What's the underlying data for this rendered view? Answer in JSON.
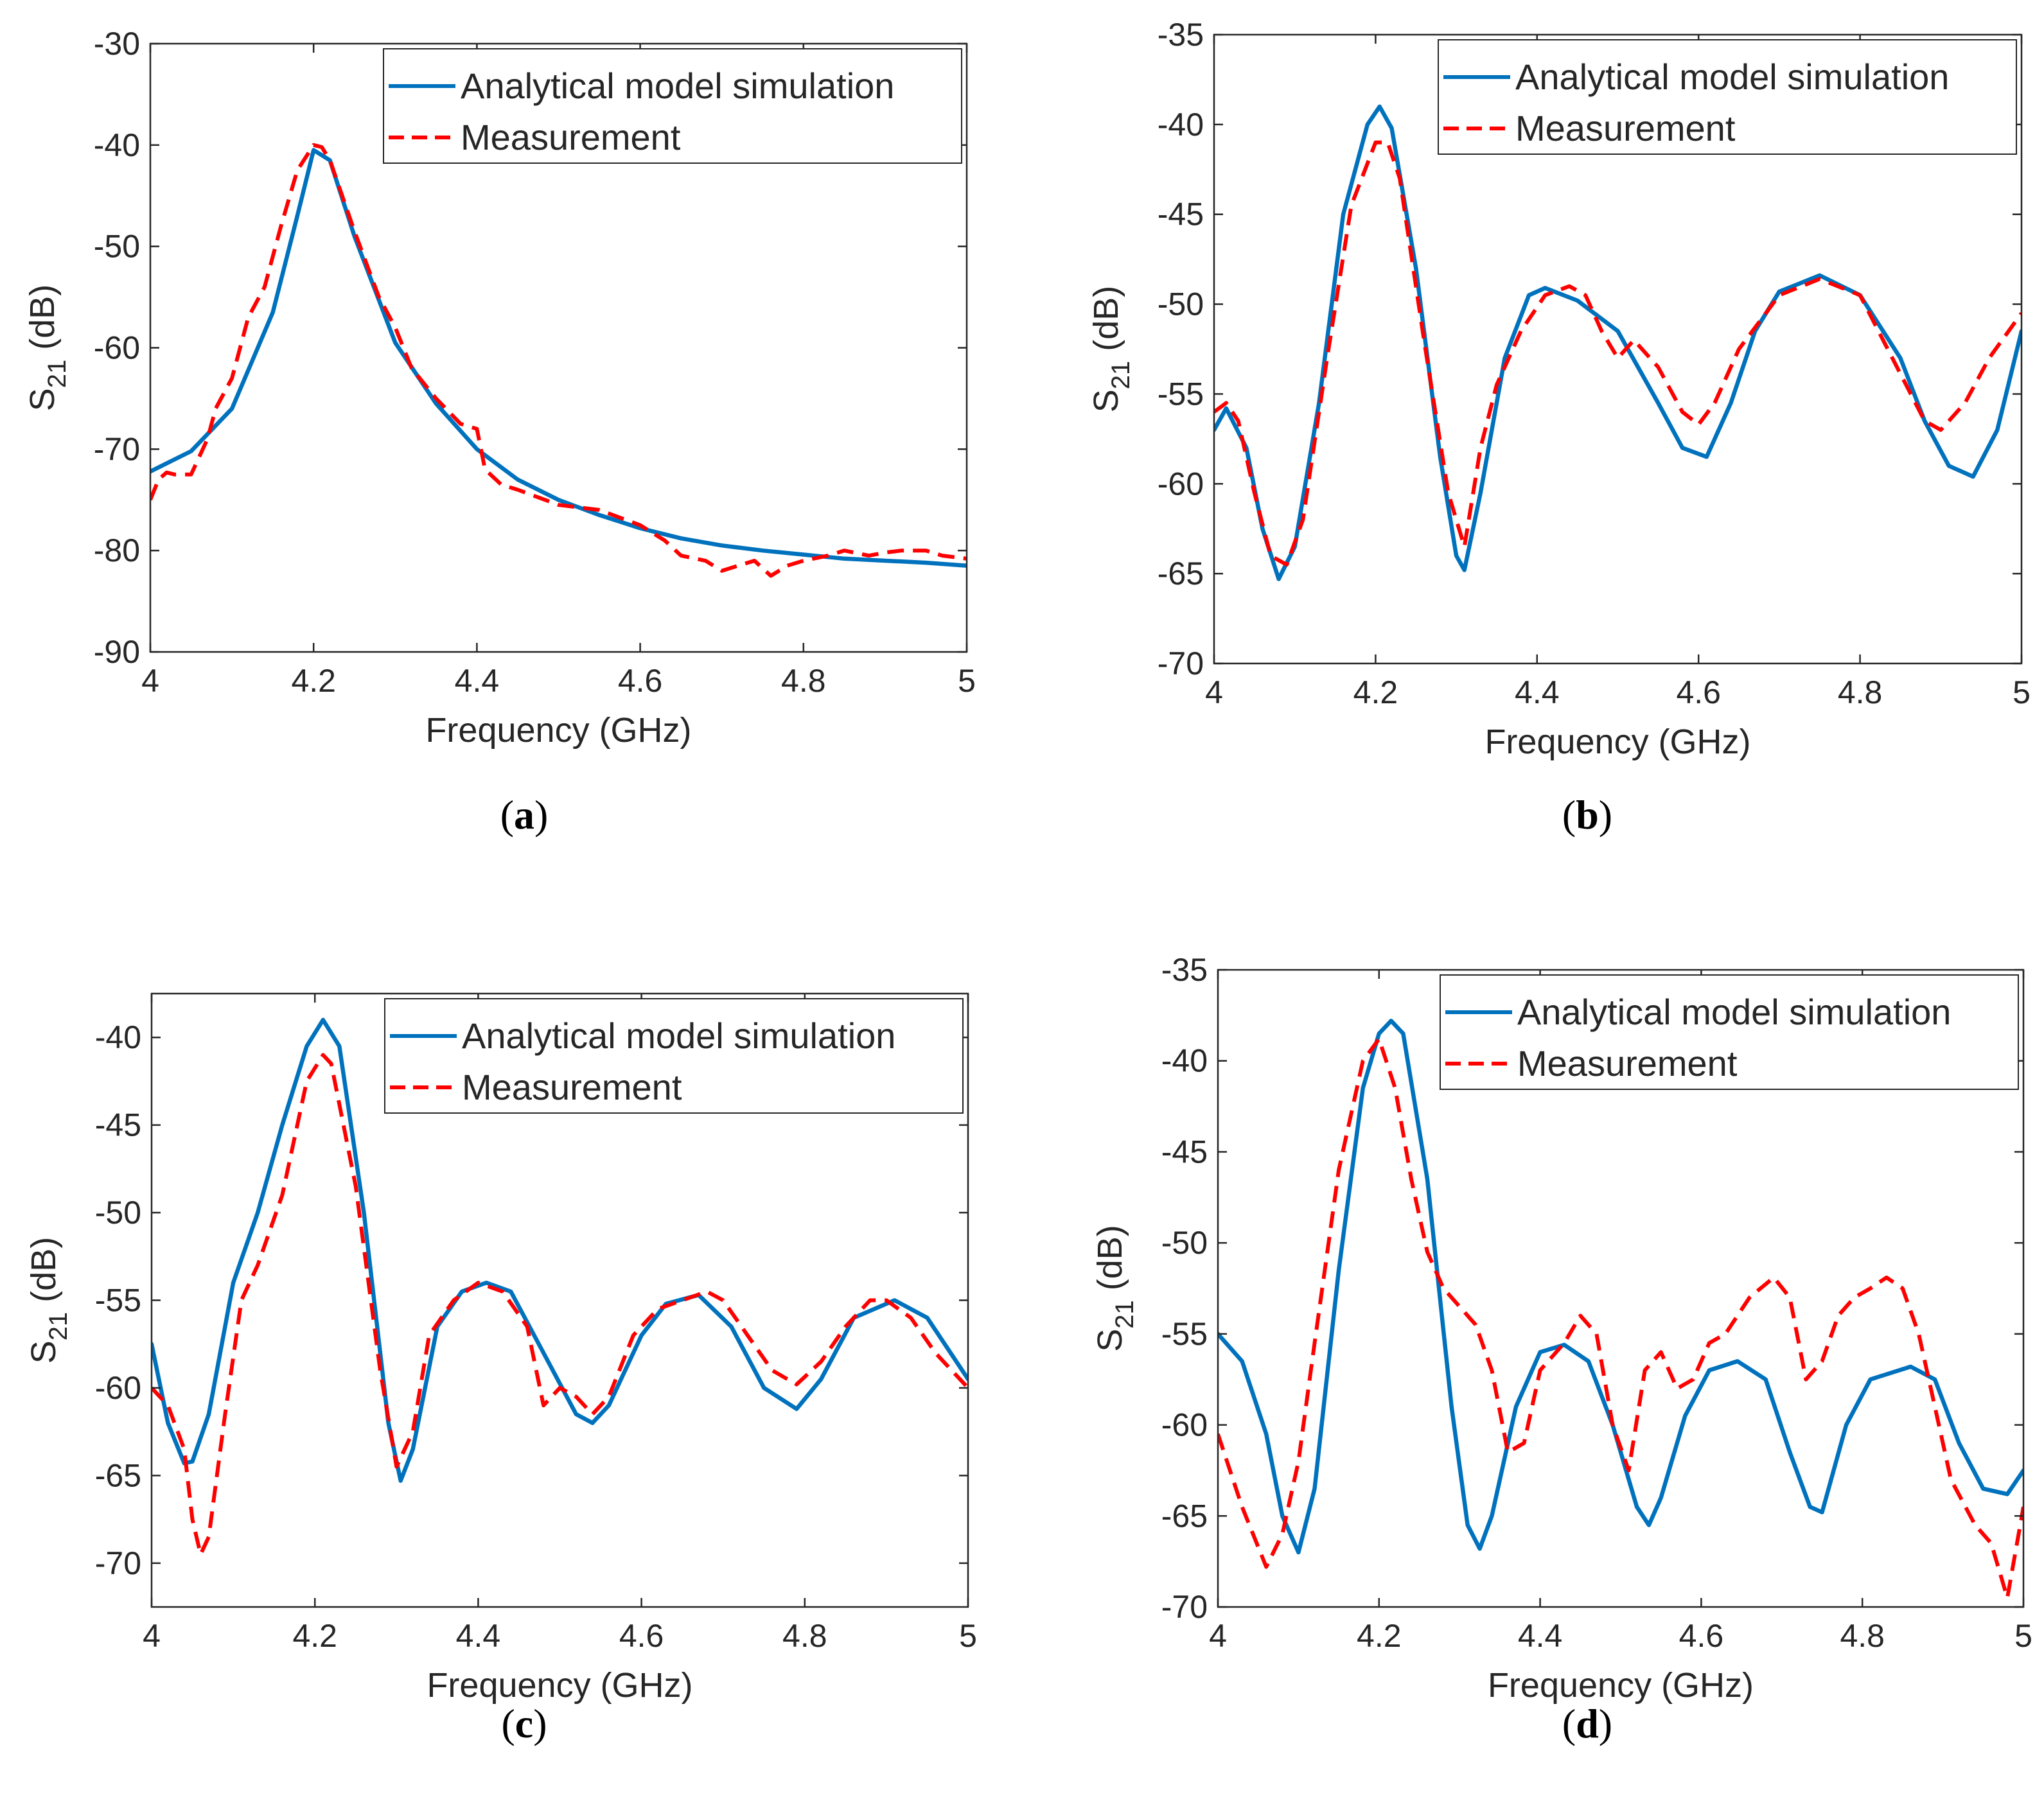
{
  "colors": {
    "simulation": "#0072BD",
    "measurement": "#FF0000",
    "axis": "#262626",
    "background": "#FFFFFF"
  },
  "chart_data": [
    {
      "type": "line",
      "panel_label": "(a)",
      "xlabel": "Frequency (GHz)",
      "ylabel": "S21 (dB)",
      "ylabel_main": "S",
      "ylabel_sub": "21",
      "ylabel_unit": " (dB)",
      "xlim": [
        4,
        5
      ],
      "ylim": [
        -90,
        -30
      ],
      "xticks": [
        4,
        4.2,
        4.4,
        4.6,
        4.8,
        5
      ],
      "yticks": [
        -90,
        -80,
        -70,
        -60,
        -50,
        -40,
        -30
      ],
      "legend": [
        "Analytical model simulation",
        "Measurement"
      ],
      "legend_position": "top-right",
      "series": [
        {
          "name": "Analytical model simulation",
          "style": "solid",
          "x": [
            4.0,
            4.05,
            4.1,
            4.15,
            4.18,
            4.2,
            4.22,
            4.25,
            4.3,
            4.35,
            4.4,
            4.45,
            4.5,
            4.55,
            4.6,
            4.65,
            4.7,
            4.75,
            4.8,
            4.85,
            4.9,
            4.95,
            5.0
          ],
          "y": [
            -72.2,
            -70.2,
            -66.0,
            -56.5,
            -47.0,
            -40.5,
            -41.5,
            -49.0,
            -59.5,
            -65.5,
            -70.0,
            -73.0,
            -75.0,
            -76.5,
            -77.8,
            -78.8,
            -79.5,
            -80.0,
            -80.4,
            -80.8,
            -81.0,
            -81.2,
            -81.5
          ]
        },
        {
          "name": "Measurement",
          "style": "dashed",
          "x": [
            4.0,
            4.01,
            4.02,
            4.03,
            4.05,
            4.07,
            4.08,
            4.1,
            4.12,
            4.14,
            4.16,
            4.18,
            4.2,
            4.21,
            4.22,
            4.25,
            4.28,
            4.3,
            4.32,
            4.35,
            4.38,
            4.4,
            4.41,
            4.43,
            4.45,
            4.5,
            4.55,
            4.6,
            4.63,
            4.65,
            4.68,
            4.7,
            4.72,
            4.74,
            4.76,
            4.78,
            4.8,
            4.83,
            4.85,
            4.88,
            4.9,
            4.92,
            4.95,
            4.97,
            5.0
          ],
          "y": [
            -75.0,
            -73.0,
            -72.3,
            -72.5,
            -72.5,
            -69.0,
            -66.0,
            -63.0,
            -57.0,
            -54.0,
            -48.0,
            -42.5,
            -40.0,
            -40.2,
            -41.5,
            -48.5,
            -55.0,
            -58.0,
            -62.0,
            -65.0,
            -67.5,
            -68.0,
            -72.0,
            -73.5,
            -74.0,
            -75.5,
            -76.0,
            -77.5,
            -79.0,
            -80.5,
            -81.0,
            -82.0,
            -81.5,
            -81.0,
            -82.5,
            -81.5,
            -81.0,
            -80.5,
            -80.0,
            -80.5,
            -80.2,
            -80.0,
            -80.0,
            -80.5,
            -80.8
          ]
        }
      ]
    },
    {
      "type": "line",
      "panel_label": "(b)",
      "xlabel": "Frequency (GHz)",
      "ylabel": "S21 (dB)",
      "ylabel_main": "S",
      "ylabel_sub": "21",
      "ylabel_unit": " (dB)",
      "xlim": [
        4,
        5
      ],
      "ylim": [
        -70,
        -35
      ],
      "xticks": [
        4,
        4.2,
        4.4,
        4.6,
        4.8,
        5
      ],
      "yticks": [
        -70,
        -65,
        -60,
        -55,
        -50,
        -45,
        -40,
        -35
      ],
      "legend": [
        "Analytical model simulation",
        "Measurement"
      ],
      "legend_position": "top-right",
      "series": [
        {
          "name": "Analytical model simulation",
          "style": "solid",
          "x": [
            4.0,
            4.015,
            4.04,
            4.06,
            4.08,
            4.1,
            4.13,
            4.16,
            4.19,
            4.205,
            4.22,
            4.25,
            4.28,
            4.3,
            4.31,
            4.33,
            4.36,
            4.39,
            4.41,
            4.45,
            4.5,
            4.55,
            4.58,
            4.61,
            4.64,
            4.67,
            4.7,
            4.75,
            4.8,
            4.85,
            4.88,
            4.91,
            4.94,
            4.97,
            5.0
          ],
          "y": [
            -57.0,
            -55.8,
            -58.0,
            -62.5,
            -65.3,
            -63.5,
            -55.5,
            -45.0,
            -40.0,
            -39.0,
            -40.2,
            -48.0,
            -58.5,
            -64.0,
            -64.8,
            -60.5,
            -53.0,
            -49.5,
            -49.1,
            -49.8,
            -51.5,
            -55.5,
            -58.0,
            -58.5,
            -55.5,
            -51.5,
            -49.3,
            -48.4,
            -49.5,
            -53.0,
            -56.5,
            -59.0,
            -59.6,
            -57.0,
            -51.5
          ]
        },
        {
          "name": "Measurement",
          "style": "dashed",
          "x": [
            4.0,
            4.015,
            4.03,
            4.05,
            4.07,
            4.09,
            4.11,
            4.14,
            4.17,
            4.2,
            4.215,
            4.23,
            4.26,
            4.29,
            4.31,
            4.33,
            4.35,
            4.38,
            4.41,
            4.44,
            4.46,
            4.48,
            4.5,
            4.52,
            4.55,
            4.58,
            4.6,
            4.62,
            4.65,
            4.7,
            4.75,
            4.8,
            4.84,
            4.88,
            4.9,
            4.93,
            4.96,
            5.0
          ],
          "y": [
            -56.0,
            -55.5,
            -56.5,
            -60.5,
            -64.0,
            -64.5,
            -62.0,
            -53.0,
            -44.5,
            -41.0,
            -41.0,
            -43.0,
            -52.0,
            -60.5,
            -63.5,
            -58.0,
            -54.5,
            -51.5,
            -49.5,
            -49.0,
            -49.5,
            -51.5,
            -53.0,
            -52.0,
            -53.5,
            -56.0,
            -56.7,
            -55.5,
            -52.5,
            -49.5,
            -48.6,
            -49.5,
            -53.0,
            -56.5,
            -57.0,
            -55.5,
            -53.0,
            -50.5
          ]
        }
      ]
    },
    {
      "type": "line",
      "panel_label": "(c)",
      "xlabel": "Frequency (GHz)",
      "ylabel": "S21 (dB)",
      "ylabel_main": "S",
      "ylabel_sub": "21",
      "ylabel_unit": " (dB)",
      "xlim": [
        4,
        5
      ],
      "ylim": [
        -72.5,
        -37.5
      ],
      "xticks": [
        4,
        4.2,
        4.4,
        4.6,
        4.8,
        5
      ],
      "yticks": [
        -70,
        -65,
        -60,
        -55,
        -50,
        -45,
        -40
      ],
      "legend": [
        "Analytical model simulation",
        "Measurement"
      ],
      "legend_position": "top-right",
      "series": [
        {
          "name": "Analytical model simulation",
          "style": "solid",
          "x": [
            4.0,
            4.02,
            4.04,
            4.05,
            4.07,
            4.1,
            4.13,
            4.16,
            4.19,
            4.21,
            4.23,
            4.26,
            4.29,
            4.305,
            4.32,
            4.35,
            4.38,
            4.41,
            4.44,
            4.48,
            4.52,
            4.54,
            4.56,
            4.6,
            4.63,
            4.67,
            4.71,
            4.75,
            4.79,
            4.82,
            4.86,
            4.91,
            4.95,
            5.0
          ],
          "y": [
            -57.5,
            -62.0,
            -64.3,
            -64.2,
            -61.5,
            -54.0,
            -50.0,
            -45.0,
            -40.5,
            -39.0,
            -40.5,
            -50.0,
            -62.0,
            -65.3,
            -63.5,
            -56.5,
            -54.5,
            -54.0,
            -54.5,
            -58.0,
            -61.5,
            -62.0,
            -61.0,
            -57.0,
            -55.2,
            -54.7,
            -56.5,
            -60.0,
            -61.2,
            -59.5,
            -56.0,
            -55.0,
            -56.0,
            -59.5
          ]
        },
        {
          "name": "Measurement",
          "style": "dashed",
          "x": [
            4.0,
            4.02,
            4.04,
            4.05,
            4.06,
            4.07,
            4.09,
            4.11,
            4.13,
            4.16,
            4.19,
            4.21,
            4.22,
            4.25,
            4.28,
            4.3,
            4.32,
            4.34,
            4.37,
            4.4,
            4.43,
            4.46,
            4.48,
            4.5,
            4.52,
            4.54,
            4.56,
            4.59,
            4.62,
            4.65,
            4.68,
            4.7,
            4.73,
            4.76,
            4.79,
            4.82,
            4.85,
            4.88,
            4.9,
            4.93,
            4.96,
            5.0
          ],
          "y": [
            -60.0,
            -61.0,
            -63.5,
            -67.5,
            -69.5,
            -68.5,
            -61.5,
            -55.0,
            -53.0,
            -49.0,
            -42.5,
            -41.0,
            -41.5,
            -48.5,
            -59.0,
            -64.5,
            -62.5,
            -57.0,
            -55.0,
            -54.0,
            -54.5,
            -56.5,
            -61.0,
            -60.0,
            -60.5,
            -61.5,
            -60.5,
            -57.0,
            -55.5,
            -55.0,
            -54.5,
            -55.0,
            -57.0,
            -59.0,
            -59.8,
            -58.5,
            -56.5,
            -55.0,
            -55.0,
            -56.0,
            -58.0,
            -60.0
          ]
        }
      ]
    },
    {
      "type": "line",
      "panel_label": "(d)",
      "xlabel": "Frequency (GHz)",
      "ylabel": "S21 (dB)",
      "ylabel_main": "S",
      "ylabel_sub": "21",
      "ylabel_unit": " (dB)",
      "xlim": [
        4,
        5
      ],
      "ylim": [
        -70,
        -35
      ],
      "xticks": [
        4,
        4.2,
        4.4,
        4.6,
        4.8,
        5
      ],
      "yticks": [
        -70,
        -65,
        -60,
        -55,
        -50,
        -45,
        -40,
        -35
      ],
      "legend": [
        "Analytical model simulation",
        "Measurement"
      ],
      "legend_position": "top-right",
      "series": [
        {
          "name": "Analytical model simulation",
          "style": "solid",
          "x": [
            4.0,
            4.03,
            4.06,
            4.08,
            4.1,
            4.12,
            4.15,
            4.18,
            4.2,
            4.215,
            4.23,
            4.26,
            4.29,
            4.31,
            4.325,
            4.34,
            4.37,
            4.4,
            4.43,
            4.46,
            4.49,
            4.52,
            4.535,
            4.55,
            4.58,
            4.61,
            4.645,
            4.68,
            4.71,
            4.735,
            4.75,
            4.78,
            4.81,
            4.86,
            4.89,
            4.92,
            4.95,
            4.98,
            5.0
          ],
          "y": [
            -55.0,
            -56.5,
            -60.5,
            -65.0,
            -67.0,
            -63.5,
            -51.5,
            -41.5,
            -38.5,
            -37.8,
            -38.5,
            -46.5,
            -59.0,
            -65.5,
            -66.8,
            -65.0,
            -59.0,
            -56.0,
            -55.6,
            -56.5,
            -60.0,
            -64.5,
            -65.5,
            -64.0,
            -59.5,
            -57.0,
            -56.5,
            -57.5,
            -61.5,
            -64.5,
            -64.8,
            -60.0,
            -57.5,
            -56.8,
            -57.5,
            -61.0,
            -63.5,
            -63.8,
            -62.5
          ]
        },
        {
          "name": "Measurement",
          "style": "dashed",
          "x": [
            4.0,
            4.03,
            4.06,
            4.08,
            4.1,
            4.12,
            4.15,
            4.18,
            4.2,
            4.22,
            4.24,
            4.26,
            4.28,
            4.3,
            4.32,
            4.34,
            4.36,
            4.38,
            4.4,
            4.43,
            4.45,
            4.47,
            4.49,
            4.51,
            4.53,
            4.55,
            4.57,
            4.59,
            4.61,
            4.63,
            4.66,
            4.69,
            4.71,
            4.73,
            4.75,
            4.77,
            4.79,
            4.81,
            4.83,
            4.85,
            4.87,
            4.89,
            4.91,
            4.94,
            4.96,
            4.98,
            5.0
          ],
          "y": [
            -60.5,
            -64.5,
            -67.8,
            -66.0,
            -62.0,
            -55.5,
            -46.0,
            -40.0,
            -38.8,
            -41.5,
            -46.5,
            -50.5,
            -52.5,
            -53.5,
            -54.5,
            -57.0,
            -61.5,
            -61.0,
            -57.0,
            -55.5,
            -54.0,
            -55.0,
            -60.0,
            -62.5,
            -57.0,
            -56.0,
            -58.0,
            -57.5,
            -55.5,
            -55.0,
            -53.0,
            -51.9,
            -53.0,
            -57.5,
            -56.5,
            -54.0,
            -53.0,
            -52.5,
            -51.9,
            -52.5,
            -55.0,
            -59.0,
            -63.0,
            -65.5,
            -66.5,
            -69.5,
            -64.5
          ]
        }
      ]
    }
  ]
}
